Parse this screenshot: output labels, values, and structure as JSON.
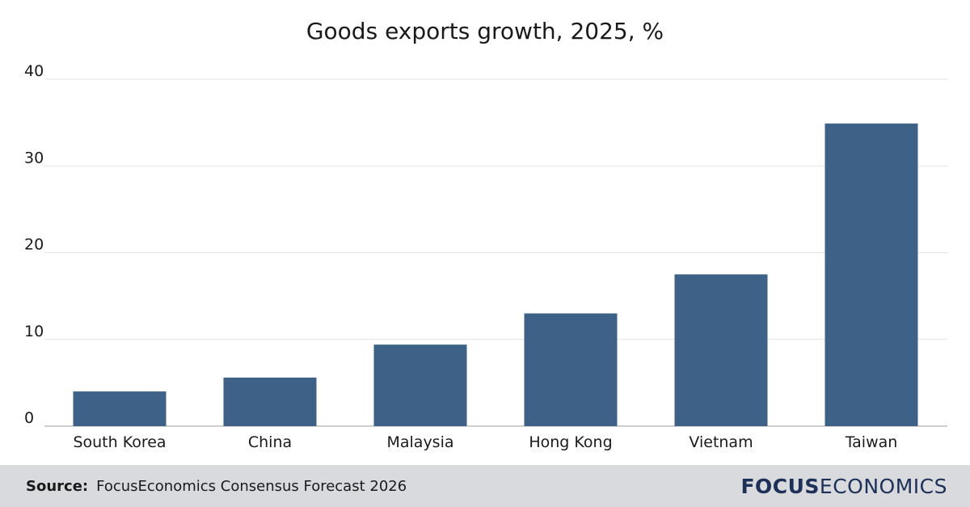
{
  "chart_data": {
    "type": "bar",
    "title": "Goods exports growth, 2025, %",
    "categories": [
      "South Korea",
      "China",
      "Malaysia",
      "Hong Kong",
      "Vietnam",
      "Taiwan"
    ],
    "values": [
      4.0,
      5.6,
      9.4,
      13.0,
      17.5,
      34.9
    ],
    "xlabel": "",
    "ylabel": "",
    "ylim": [
      0,
      40
    ],
    "yticks": [
      "0",
      "10",
      "20",
      "30",
      "40"
    ],
    "grid": true,
    "bar_color": "#3d6187"
  },
  "footer": {
    "source_label": "Source:",
    "source_text": "FocusEconomics Consensus Forecast 2026",
    "logo_bold": "FOCUS",
    "logo_light": "ECONOMICS",
    "background": "#d9dade"
  }
}
